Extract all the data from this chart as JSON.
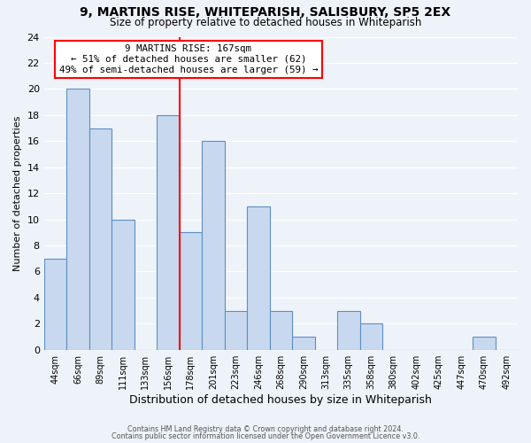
{
  "title": "9, MARTINS RISE, WHITEPARISH, SALISBURY, SP5 2EX",
  "subtitle": "Size of property relative to detached houses in Whiteparish",
  "xlabel": "Distribution of detached houses by size in Whiteparish",
  "ylabel": "Number of detached properties",
  "bin_labels": [
    "44sqm",
    "66sqm",
    "89sqm",
    "111sqm",
    "133sqm",
    "156sqm",
    "178sqm",
    "201sqm",
    "223sqm",
    "246sqm",
    "268sqm",
    "290sqm",
    "313sqm",
    "335sqm",
    "358sqm",
    "380sqm",
    "402sqm",
    "425sqm",
    "447sqm",
    "470sqm",
    "492sqm"
  ],
  "bar_values": [
    7,
    20,
    17,
    10,
    0,
    18,
    9,
    16,
    3,
    11,
    3,
    1,
    0,
    3,
    2,
    0,
    0,
    0,
    0,
    1,
    0
  ],
  "bar_color": "#c8d9ef",
  "bar_edge_color": "#5b8fc4",
  "property_line_color": "red",
  "annotation_box_color": "white",
  "annotation_box_edge_color": "red",
  "annotation_title": "9 MARTINS RISE: 167sqm",
  "annotation_line1": "← 51% of detached houses are smaller (62)",
  "annotation_line2": "49% of semi-detached houses are larger (59) →",
  "ylim": [
    0,
    24
  ],
  "yticks": [
    0,
    2,
    4,
    6,
    8,
    10,
    12,
    14,
    16,
    18,
    20,
    22,
    24
  ],
  "n_bins": 21,
  "property_bin_index": 5,
  "footer_line1": "Contains HM Land Registry data © Crown copyright and database right 2024.",
  "footer_line2": "Contains public sector information licensed under the Open Government Licence v3.0.",
  "background_color": "#eef2f9"
}
